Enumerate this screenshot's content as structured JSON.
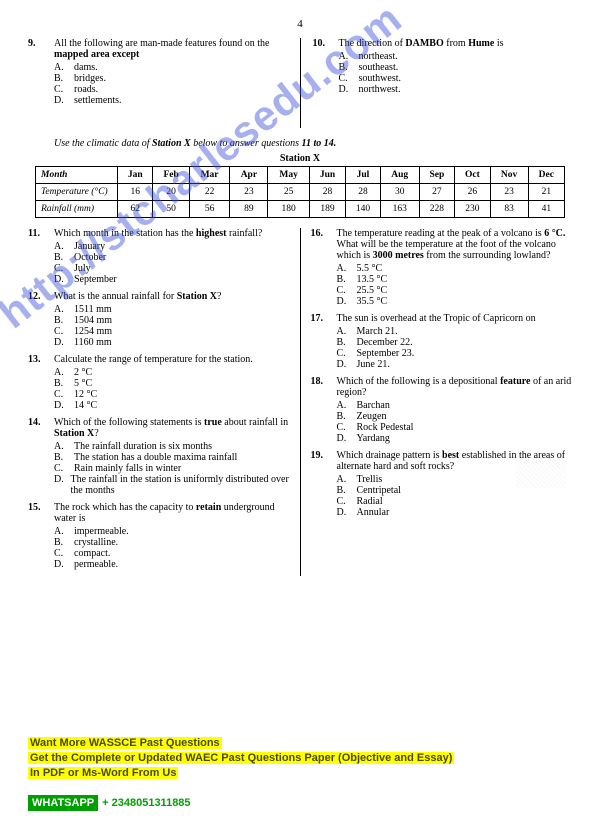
{
  "page_number": "4",
  "watermark_text": "http://stcharlesedu.com",
  "q9": {
    "num": "9.",
    "stem_a": "All the following are man-made features found on the ",
    "stem_b": "mapped area except",
    "opts": {
      "A": "dams.",
      "B": "bridges.",
      "C": "roads.",
      "D": "settlements."
    }
  },
  "q10": {
    "num": "10.",
    "stem_a": "The direction of ",
    "stem_b": "DAMBO",
    "stem_c": " from ",
    "stem_d": "Hume",
    "stem_e": " is",
    "opts": {
      "A": "northeast.",
      "B": "southeast.",
      "C": "southwest.",
      "D": "northwest."
    }
  },
  "instruction_a": "Use the climatic data of ",
  "instruction_b": "Station X",
  "instruction_c": " below to answer questions ",
  "instruction_d": "11 to 14.",
  "table_title": "Station X",
  "table": {
    "header": [
      "Month",
      "Jan",
      "Feb",
      "Mar",
      "Apr",
      "May",
      "Jun",
      "Jul",
      "Aug",
      "Sep",
      "Oct",
      "Nov",
      "Dec"
    ],
    "row1": [
      "Temperature (°C)",
      "16",
      "20",
      "22",
      "23",
      "25",
      "28",
      "28",
      "30",
      "27",
      "26",
      "23",
      "21"
    ],
    "row2": [
      "Rainfall (mm)",
      "62",
      "50",
      "56",
      "89",
      "180",
      "189",
      "140",
      "163",
      "228",
      "230",
      "83",
      "41"
    ]
  },
  "q11": {
    "num": "11.",
    "stem_a": "Which month in the station has the ",
    "stem_b": "highest",
    "stem_c": " rainfall?",
    "opts": {
      "A": "January",
      "B": "October",
      "C": "July",
      "D": "September"
    }
  },
  "q12": {
    "num": "12.",
    "stem_a": "What is the annual rainfall for ",
    "stem_b": "Station X",
    "stem_c": "?",
    "opts": {
      "A": "1511 mm",
      "B": "1504 mm",
      "C": "1254 mm",
      "D": "1160 mm"
    }
  },
  "q13": {
    "num": "13.",
    "stem": "Calculate the range of temperature for the station.",
    "opts": {
      "A": "2 °C",
      "B": "5 °C",
      "C": "12 °C",
      "D": "14 °C"
    }
  },
  "q14": {
    "num": "14.",
    "stem_a": "Which of the following statements is ",
    "stem_b": "true ",
    "stem_c": "about rainfall in ",
    "stem_d": "Station X",
    "stem_e": "?",
    "opts": {
      "A": "The rainfall duration is six months",
      "B": "The station has a double maxima rainfall",
      "C": "Rain mainly falls in winter",
      "D": "The rainfall in the station is uniformly distributed over the months"
    }
  },
  "q15": {
    "num": "15.",
    "stem_a": "The rock which has the capacity to ",
    "stem_b": "retain",
    "stem_c": " underground water is",
    "opts": {
      "A": "impermeable.",
      "B": "crystalline.",
      "C": "compact.",
      "D": "permeable."
    }
  },
  "q16": {
    "num": "16.",
    "stem_a": "The temperature reading at the peak of a volcano is ",
    "stem_b": "6 °C. ",
    "stem_c": "What will be the temperature at the foot of the volcano which is ",
    "stem_d": "3000 metres ",
    "stem_e": "from the surrounding lowland?",
    "opts": {
      "A": "5.5 °C",
      "B": "13.5 °C",
      "C": "25.5 °C",
      "D": "35.5 °C"
    }
  },
  "q17": {
    "num": "17.",
    "stem": "The sun is overhead at the Tropic of Capricorn on",
    "opts": {
      "A": "March 21.",
      "B": "December 22.",
      "C": "September 23.",
      "D": "June 21."
    }
  },
  "q18": {
    "num": "18.",
    "stem_a": "Which of the following is a depositional ",
    "stem_b": "feature",
    "stem_c": " of an arid region?",
    "opts": {
      "A": "Barchan",
      "B": "Zeugen",
      "C": "Rock Pedestal",
      "D": "Yardang"
    }
  },
  "q19": {
    "num": "19.",
    "stem_a": "Which drainage pattern is ",
    "stem_b": "best ",
    "stem_c": "established in the areas of alternate hard and soft rocks?",
    "opts": {
      "A": "Trellis",
      "B": "Centripetal",
      "C": "Radial",
      "D": "Annular"
    }
  },
  "promo": {
    "l1": "Want More WASSCE Past Questions",
    "l2": "Get the Complete or Updated WAEC Past Questions Paper (Objective and Essay)",
    "l3": "In PDF or Ms-Word From Us"
  },
  "whatsapp": {
    "label": "WHATSAPP",
    "number": "+ 2348051311885"
  }
}
